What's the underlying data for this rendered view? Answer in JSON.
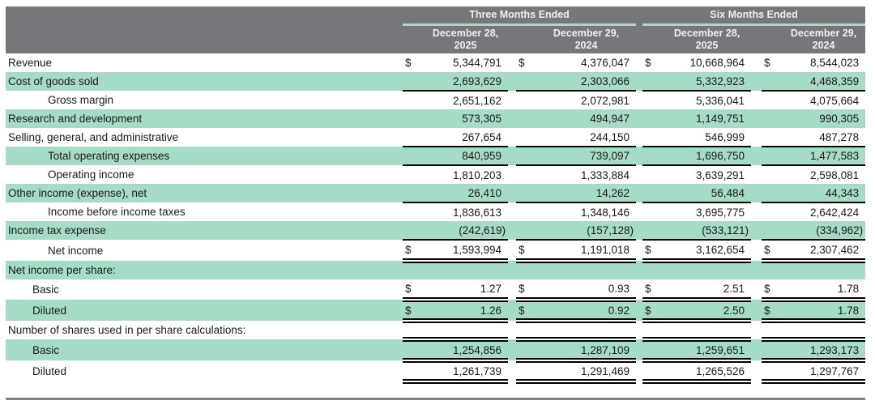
{
  "colors": {
    "header_bg": "#76777B",
    "header_text": "#F0F0F1",
    "teal_rule": "#A9D8C5",
    "row_shade": "#A5DCC5",
    "bottom_rule": "#808184",
    "body_text": "#1A1A1A"
  },
  "table": {
    "header": {
      "groups": [
        {
          "label": "Three Months Ended"
        },
        {
          "label": "Six Months Ended"
        }
      ],
      "columns": [
        {
          "line1": "December 28,",
          "line2": "2025"
        },
        {
          "line1": "December 29,",
          "line2": "2024"
        },
        {
          "line1": "December 28,",
          "line2": "2025"
        },
        {
          "line1": "December 29,",
          "line2": "2024"
        }
      ]
    },
    "rows": [
      {
        "label": "Revenue",
        "indent": 0,
        "dollar": true,
        "values": [
          "5,344,791",
          "4,376,047",
          "10,668,964",
          "8,544,023"
        ],
        "underline": "none",
        "topline": "none"
      },
      {
        "label": "Cost of goods sold",
        "indent": 0,
        "dollar": false,
        "values": [
          "2,693,629",
          "2,303,066",
          "5,332,923",
          "4,468,359"
        ],
        "underline": "single",
        "topline": "none"
      },
      {
        "label": "Gross margin",
        "indent": 2,
        "dollar": false,
        "values": [
          "2,651,162",
          "2,072,981",
          "5,336,041",
          "4,075,664"
        ],
        "underline": "none",
        "topline": "none"
      },
      {
        "label": "Research and development",
        "indent": 0,
        "dollar": false,
        "values": [
          "573,305",
          "494,947",
          "1,149,751",
          "990,305"
        ],
        "underline": "none",
        "topline": "none"
      },
      {
        "label": "Selling, general, and administrative",
        "indent": 0,
        "dollar": false,
        "values": [
          "267,654",
          "244,150",
          "546,999",
          "487,278"
        ],
        "underline": "single",
        "topline": "none"
      },
      {
        "label": "Total operating expenses",
        "indent": 2,
        "dollar": false,
        "values": [
          "840,959",
          "739,097",
          "1,696,750",
          "1,477,583"
        ],
        "underline": "single",
        "topline": "none"
      },
      {
        "label": "Operating income",
        "indent": 2,
        "dollar": false,
        "values": [
          "1,810,203",
          "1,333,884",
          "3,639,291",
          "2,598,081"
        ],
        "underline": "none",
        "topline": "none"
      },
      {
        "label": "Other income (expense), net",
        "indent": 0,
        "dollar": false,
        "values": [
          "26,410",
          "14,262",
          "56,484",
          "44,343"
        ],
        "underline": "single",
        "topline": "none"
      },
      {
        "label": "Income before income taxes",
        "indent": 2,
        "dollar": false,
        "values": [
          "1,836,613",
          "1,348,146",
          "3,695,775",
          "2,642,424"
        ],
        "underline": "none",
        "topline": "none"
      },
      {
        "label": "Income tax expense",
        "indent": 0,
        "dollar": false,
        "values": [
          "(242,619)",
          "(157,128)",
          "(533,121)",
          "(334,962)"
        ],
        "underline": "single",
        "topline": "none"
      },
      {
        "label": "Net income",
        "indent": 2,
        "dollar": true,
        "values": [
          "1,593,994",
          "1,191,018",
          "3,162,654",
          "2,307,462"
        ],
        "underline": "double",
        "topline": "none"
      },
      {
        "label": "Net income per share:",
        "indent": 0,
        "dollar": false,
        "values": null,
        "underline": "none",
        "topline": "none"
      },
      {
        "label": "Basic",
        "indent": 1,
        "dollar": true,
        "values": [
          "1.27",
          "0.93",
          "2.51",
          "1.78"
        ],
        "underline": "double",
        "topline": "none"
      },
      {
        "label": "Diluted",
        "indent": 1,
        "dollar": true,
        "values": [
          "1.26",
          "0.92",
          "2.50",
          "1.78"
        ],
        "underline": "double",
        "topline": "none"
      },
      {
        "label": "Number of shares used in per share calculations:",
        "indent": 0,
        "dollar": false,
        "values": null,
        "underline": "none",
        "topline": "none"
      },
      {
        "label": "Basic",
        "indent": 1,
        "dollar": false,
        "values": [
          "1,254,856",
          "1,287,109",
          "1,259,651",
          "1,293,173"
        ],
        "underline": "double",
        "topline": "double"
      },
      {
        "label": "Diluted",
        "indent": 1,
        "dollar": false,
        "values": [
          "1,261,739",
          "1,291,469",
          "1,265,526",
          "1,297,767"
        ],
        "underline": "double",
        "topline": "none"
      }
    ]
  }
}
